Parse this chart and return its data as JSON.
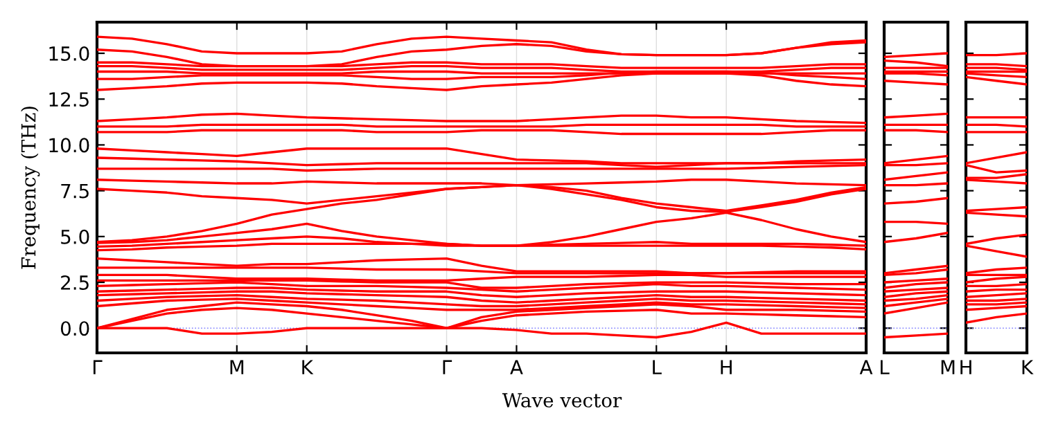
{
  "chart_data": [
    {
      "type": "line",
      "xlabel": "Wave vector",
      "ylabel": "Frequency (THz)",
      "grid": "x",
      "line_style": "solid",
      "categories": [
        "Γ",
        null,
        null,
        null,
        "M",
        null,
        "K",
        null,
        null,
        null,
        "Γ",
        null,
        "A",
        null,
        null,
        null,
        "L",
        null,
        "H",
        null,
        null,
        null,
        "A"
      ],
      "ylim": [
        -1.35,
        16.7
      ],
      "yticks": [
        {
          "value": 0,
          "label": "0.0"
        },
        {
          "value": 2.5,
          "label": "2.5"
        },
        {
          "value": 5,
          "label": "5.0"
        },
        {
          "value": 7.5,
          "label": "7.5"
        },
        {
          "value": 10,
          "label": "10.0"
        },
        {
          "value": 12.5,
          "label": "12.5"
        },
        {
          "value": 15,
          "label": "15.0"
        }
      ],
      "ref_lines": [
        {
          "axis": "y",
          "value": 0,
          "color": "#8080ff",
          "line_style": "dotted"
        }
      ],
      "series": [
        {
          "color": "#ff0000",
          "values": [
            15.9,
            15.8,
            15.5,
            15.1,
            15.0,
            15.0,
            15.0,
            15.1,
            15.5,
            15.8,
            15.9,
            15.8,
            15.7,
            15.6,
            15.2,
            14.95,
            14.9,
            14.9,
            14.9,
            15.0,
            15.3,
            15.6,
            15.7
          ]
        },
        {
          "color": "#ff0000",
          "values": [
            15.2,
            15.1,
            14.8,
            14.4,
            14.3,
            14.3,
            14.3,
            14.4,
            14.8,
            15.1,
            15.2,
            15.4,
            15.5,
            15.4,
            15.1,
            14.95,
            14.9,
            14.9,
            14.9,
            15.0,
            15.3,
            15.5,
            15.6
          ]
        },
        {
          "color": "#ff0000",
          "values": [
            14.5,
            14.5,
            14.4,
            14.3,
            14.3,
            14.3,
            14.3,
            14.3,
            14.4,
            14.5,
            14.5,
            14.4,
            14.4,
            14.4,
            14.3,
            14.2,
            14.2,
            14.2,
            14.2,
            14.2,
            14.3,
            14.4,
            14.4
          ]
        },
        {
          "color": "#ff0000",
          "values": [
            14.3,
            14.3,
            14.2,
            14.1,
            14.1,
            14.1,
            14.1,
            14.1,
            14.2,
            14.3,
            14.3,
            14.2,
            14.2,
            14.2,
            14.1,
            14.0,
            14.0,
            14.0,
            14.0,
            14.0,
            14.1,
            14.2,
            14.2
          ]
        },
        {
          "color": "#ff0000",
          "values": [
            14.0,
            14.0,
            14.0,
            13.9,
            13.9,
            13.9,
            13.9,
            13.9,
            14.0,
            14.0,
            14.0,
            13.9,
            13.9,
            13.9,
            13.9,
            13.9,
            13.9,
            13.9,
            13.9,
            13.9,
            13.9,
            13.9,
            13.9
          ]
        },
        {
          "color": "#ff0000",
          "values": [
            13.6,
            13.6,
            13.7,
            13.8,
            13.8,
            13.8,
            13.8,
            13.8,
            13.7,
            13.6,
            13.6,
            13.7,
            13.7,
            13.7,
            13.8,
            13.95,
            14.0,
            14.0,
            14.0,
            13.95,
            13.8,
            13.7,
            13.6
          ]
        },
        {
          "color": "#ff0000",
          "values": [
            13.0,
            13.1,
            13.2,
            13.35,
            13.4,
            13.4,
            13.4,
            13.35,
            13.2,
            13.1,
            13.0,
            13.2,
            13.3,
            13.4,
            13.6,
            13.8,
            13.9,
            13.9,
            13.9,
            13.8,
            13.5,
            13.3,
            13.2
          ]
        },
        {
          "color": "#ff0000",
          "values": [
            11.3,
            11.4,
            11.5,
            11.65,
            11.7,
            11.6,
            11.5,
            11.45,
            11.4,
            11.35,
            11.3,
            11.3,
            11.3,
            11.4,
            11.5,
            11.6,
            11.6,
            11.5,
            11.5,
            11.4,
            11.3,
            11.25,
            11.2
          ]
        },
        {
          "color": "#ff0000",
          "values": [
            11.0,
            11.0,
            11.0,
            11.1,
            11.1,
            11.1,
            11.1,
            11.1,
            11.0,
            11.0,
            11.0,
            11.0,
            11.0,
            11.0,
            11.1,
            11.1,
            11.1,
            11.1,
            11.1,
            11.1,
            11.0,
            11.0,
            11.0
          ]
        },
        {
          "color": "#ff0000",
          "values": [
            10.7,
            10.7,
            10.7,
            10.8,
            10.8,
            10.8,
            10.8,
            10.8,
            10.7,
            10.7,
            10.7,
            10.8,
            10.8,
            10.8,
            10.7,
            10.6,
            10.6,
            10.6,
            10.6,
            10.6,
            10.7,
            10.8,
            10.8
          ]
        },
        {
          "color": "#ff0000",
          "values": [
            9.8,
            9.7,
            9.6,
            9.5,
            9.4,
            9.6,
            9.8,
            9.8,
            9.8,
            9.8,
            9.8,
            9.5,
            9.2,
            9.15,
            9.1,
            9.0,
            9.0,
            9.0,
            9.0,
            9.0,
            9.1,
            9.15,
            9.2
          ]
        },
        {
          "color": "#ff0000",
          "values": [
            9.3,
            9.25,
            9.2,
            9.15,
            9.1,
            9.0,
            8.9,
            8.95,
            9.0,
            9.0,
            9.0,
            9.0,
            9.0,
            9.0,
            9.0,
            8.9,
            8.8,
            8.9,
            9.0,
            9.0,
            9.0,
            9.0,
            9.0
          ]
        },
        {
          "color": "#ff0000",
          "values": [
            8.7,
            8.7,
            8.7,
            8.7,
            8.7,
            8.7,
            8.6,
            8.65,
            8.7,
            8.7,
            8.7,
            8.7,
            8.7,
            8.7,
            8.7,
            8.7,
            8.7,
            8.7,
            8.7,
            8.75,
            8.8,
            8.85,
            8.9
          ]
        },
        {
          "color": "#ff0000",
          "values": [
            8.1,
            8.05,
            8.0,
            7.95,
            7.9,
            7.9,
            8.0,
            7.95,
            7.9,
            7.9,
            7.9,
            7.9,
            7.8,
            7.85,
            7.9,
            7.95,
            8.0,
            8.1,
            8.1,
            8.0,
            7.9,
            7.85,
            7.8
          ]
        },
        {
          "color": "#ff0000",
          "values": [
            7.6,
            7.5,
            7.4,
            7.2,
            7.1,
            7.0,
            6.8,
            7.0,
            7.2,
            7.4,
            7.6,
            7.7,
            7.8,
            7.7,
            7.5,
            7.1,
            6.8,
            6.6,
            6.4,
            6.7,
            7.0,
            7.4,
            7.7
          ]
        },
        {
          "color": "#ff0000",
          "values": [
            4.7,
            4.8,
            5.0,
            5.3,
            5.7,
            6.2,
            6.5,
            6.8,
            7.0,
            7.3,
            7.6,
            7.7,
            7.8,
            7.6,
            7.3,
            7.0,
            6.6,
            6.4,
            6.35,
            6.6,
            6.9,
            7.3,
            7.6
          ]
        },
        {
          "color": "#ff0000",
          "values": [
            4.65,
            4.7,
            4.8,
            5.0,
            5.2,
            5.4,
            5.7,
            5.3,
            5.0,
            4.8,
            4.6,
            4.5,
            4.5,
            4.7,
            5.0,
            5.4,
            5.8,
            6.0,
            6.3,
            5.9,
            5.4,
            5.0,
            4.7
          ]
        },
        {
          "color": "#ff0000",
          "values": [
            4.45,
            4.5,
            4.6,
            4.7,
            4.8,
            4.9,
            5.0,
            4.9,
            4.7,
            4.6,
            4.5,
            4.5,
            4.5,
            4.55,
            4.6,
            4.65,
            4.7,
            4.6,
            4.6,
            4.6,
            4.6,
            4.55,
            4.5
          ]
        },
        {
          "color": "#ff0000",
          "values": [
            4.25,
            4.3,
            4.4,
            4.45,
            4.5,
            4.6,
            4.6,
            4.6,
            4.6,
            4.6,
            4.6,
            4.5,
            4.5,
            4.5,
            4.5,
            4.5,
            4.5,
            4.5,
            4.5,
            4.5,
            4.45,
            4.4,
            4.3
          ]
        },
        {
          "color": "#ff0000",
          "values": [
            3.8,
            3.7,
            3.6,
            3.5,
            3.4,
            3.5,
            3.5,
            3.6,
            3.7,
            3.75,
            3.8,
            3.4,
            3.1,
            3.1,
            3.1,
            3.1,
            3.1,
            3.0,
            3.0,
            3.05,
            3.1,
            3.1,
            3.1
          ]
        },
        {
          "color": "#ff0000",
          "values": [
            3.3,
            3.3,
            3.3,
            3.3,
            3.3,
            3.3,
            3.3,
            3.25,
            3.2,
            3.2,
            3.2,
            3.1,
            3.0,
            3.0,
            3.0,
            3.0,
            3.0,
            3.0,
            3.0,
            3.0,
            3.0,
            3.0,
            3.0
          ]
        },
        {
          "color": "#ff0000",
          "values": [
            2.9,
            2.9,
            2.9,
            2.8,
            2.7,
            2.7,
            2.7,
            2.65,
            2.6,
            2.6,
            2.6,
            2.7,
            2.8,
            2.8,
            2.8,
            2.85,
            2.9,
            2.9,
            2.8,
            2.8,
            2.8,
            2.8,
            2.8
          ]
        },
        {
          "color": "#ff0000",
          "values": [
            2.6,
            2.6,
            2.6,
            2.6,
            2.6,
            2.6,
            2.6,
            2.55,
            2.5,
            2.5,
            2.5,
            2.2,
            2.2,
            2.3,
            2.4,
            2.45,
            2.5,
            2.5,
            2.5,
            2.45,
            2.4,
            2.4,
            2.4
          ]
        },
        {
          "color": "#ff0000",
          "values": [
            2.3,
            2.35,
            2.4,
            2.45,
            2.5,
            2.4,
            2.3,
            2.3,
            2.3,
            2.25,
            2.2,
            2.1,
            2.0,
            2.1,
            2.2,
            2.3,
            2.4,
            2.3,
            2.3,
            2.25,
            2.2,
            2.15,
            2.1
          ]
        },
        {
          "color": "#ff0000",
          "values": [
            2.0,
            2.05,
            2.1,
            2.15,
            2.2,
            2.2,
            2.1,
            2.05,
            2.0,
            2.0,
            2.0,
            1.8,
            1.7,
            1.8,
            1.9,
            1.95,
            2.0,
            2.0,
            2.0,
            1.95,
            1.9,
            1.85,
            1.8
          ]
        },
        {
          "color": "#ff0000",
          "values": [
            1.8,
            1.85,
            1.9,
            1.95,
            2.0,
            2.0,
            1.9,
            1.85,
            1.8,
            1.75,
            1.7,
            1.5,
            1.4,
            1.5,
            1.6,
            1.7,
            1.8,
            1.7,
            1.7,
            1.65,
            1.6,
            1.55,
            1.5
          ]
        },
        {
          "color": "#ff0000",
          "values": [
            1.5,
            1.6,
            1.7,
            1.75,
            1.8,
            1.7,
            1.6,
            1.55,
            1.5,
            1.4,
            1.3,
            1.2,
            1.2,
            1.3,
            1.4,
            1.5,
            1.6,
            1.5,
            1.5,
            1.45,
            1.4,
            1.35,
            1.3
          ]
        },
        {
          "color": "#ff0000",
          "values": [
            1.2,
            1.35,
            1.5,
            1.55,
            1.6,
            1.5,
            1.4,
            1.3,
            1.2,
            1.1,
            1.0,
            1.0,
            1.0,
            1.1,
            1.2,
            1.3,
            1.4,
            1.3,
            1.3,
            1.25,
            1.2,
            1.15,
            1.1
          ]
        },
        {
          "color": "#ff0000",
          "values": [
            0.0,
            0.5,
            1.0,
            1.2,
            1.4,
            1.3,
            1.2,
            1.0,
            0.7,
            0.4,
            0.0,
            0.6,
            0.9,
            1.0,
            1.1,
            1.2,
            1.3,
            1.2,
            1.0,
            1.0,
            1.0,
            0.95,
            0.9
          ]
        },
        {
          "color": "#ff0000",
          "values": [
            0.0,
            0.4,
            0.8,
            1.0,
            1.1,
            1.0,
            0.8,
            0.6,
            0.4,
            0.2,
            0.0,
            0.4,
            0.7,
            0.8,
            0.9,
            0.95,
            1.0,
            0.8,
            0.8,
            0.75,
            0.7,
            0.65,
            0.6
          ]
        },
        {
          "color": "#ff0000",
          "values": [
            0.0,
            0.0,
            0.0,
            -0.3,
            -0.3,
            -0.2,
            0.0,
            0.0,
            0.0,
            0.0,
            0.0,
            0.0,
            -0.1,
            -0.3,
            -0.3,
            -0.4,
            -0.5,
            -0.2,
            0.3,
            -0.3,
            -0.3,
            -0.3,
            -0.3
          ]
        }
      ]
    },
    {
      "type": "line",
      "tick_labels": "x",
      "line_style": "solid",
      "categories": [
        "L",
        null,
        "M"
      ],
      "ylim": [
        -1.35,
        16.7
      ],
      "yticks": [
        {
          "value": 0,
          "label": null
        },
        {
          "value": 2.5,
          "label": null
        },
        {
          "value": 5,
          "label": null
        },
        {
          "value": 7.5,
          "label": null
        },
        {
          "value": 10,
          "label": null
        },
        {
          "value": 12.5,
          "label": null
        },
        {
          "value": 15,
          "label": null
        }
      ],
      "ref_lines": [
        {
          "axis": "y",
          "value": 0,
          "color": "#8080ff",
          "line_style": "dotted"
        }
      ],
      "series": [
        {
          "color": "#ff0000",
          "values": [
            14.8,
            14.9,
            15.0
          ]
        },
        {
          "color": "#ff0000",
          "values": [
            14.6,
            14.5,
            14.3
          ]
        },
        {
          "color": "#ff0000",
          "values": [
            14.2,
            14.2,
            14.2
          ]
        },
        {
          "color": "#ff0000",
          "values": [
            14.0,
            14.0,
            14.0
          ]
        },
        {
          "color": "#ff0000",
          "values": [
            13.9,
            13.9,
            13.8
          ]
        },
        {
          "color": "#ff0000",
          "values": [
            13.5,
            13.4,
            13.3
          ]
        },
        {
          "color": "#ff0000",
          "values": [
            11.5,
            11.6,
            11.7
          ]
        },
        {
          "color": "#ff0000",
          "values": [
            11.1,
            11.1,
            11.1
          ]
        },
        {
          "color": "#ff0000",
          "values": [
            10.8,
            10.8,
            10.7
          ]
        },
        {
          "color": "#ff0000",
          "values": [
            9.0,
            9.2,
            9.4
          ]
        },
        {
          "color": "#ff0000",
          "values": [
            8.9,
            8.9,
            9.0
          ]
        },
        {
          "color": "#ff0000",
          "values": [
            8.1,
            8.3,
            8.5
          ]
        },
        {
          "color": "#ff0000",
          "values": [
            7.8,
            7.8,
            7.9
          ]
        },
        {
          "color": "#ff0000",
          "values": [
            6.8,
            6.9,
            7.1
          ]
        },
        {
          "color": "#ff0000",
          "values": [
            5.8,
            5.8,
            5.7
          ]
        },
        {
          "color": "#ff0000",
          "values": [
            4.7,
            4.9,
            5.2
          ]
        },
        {
          "color": "#ff0000",
          "values": [
            3.0,
            3.2,
            3.4
          ]
        },
        {
          "color": "#ff0000",
          "values": [
            2.9,
            3.0,
            3.2
          ]
        },
        {
          "color": "#ff0000",
          "values": [
            2.5,
            2.6,
            2.7
          ]
        },
        {
          "color": "#ff0000",
          "values": [
            2.2,
            2.4,
            2.5
          ]
        },
        {
          "color": "#ff0000",
          "values": [
            2.0,
            2.1,
            2.2
          ]
        },
        {
          "color": "#ff0000",
          "values": [
            1.7,
            1.9,
            2.0
          ]
        },
        {
          "color": "#ff0000",
          "values": [
            1.5,
            1.6,
            1.8
          ]
        },
        {
          "color": "#ff0000",
          "values": [
            1.2,
            1.4,
            1.6
          ]
        },
        {
          "color": "#ff0000",
          "values": [
            0.8,
            1.1,
            1.4
          ]
        },
        {
          "color": "#ff0000",
          "values": [
            -0.5,
            -0.4,
            -0.3
          ]
        }
      ]
    },
    {
      "type": "line",
      "tick_labels": "x",
      "line_style": "solid",
      "categories": [
        "H",
        null,
        "K"
      ],
      "ylim": [
        -1.35,
        16.7
      ],
      "yticks": [
        {
          "value": 0,
          "label": null
        },
        {
          "value": 2.5,
          "label": null
        },
        {
          "value": 5,
          "label": null
        },
        {
          "value": 7.5,
          "label": null
        },
        {
          "value": 10,
          "label": null
        },
        {
          "value": 12.5,
          "label": null
        },
        {
          "value": 15,
          "label": null
        }
      ],
      "ref_lines": [
        {
          "axis": "y",
          "value": 0,
          "color": "#8080ff",
          "line_style": "dotted"
        }
      ],
      "series": [
        {
          "color": "#ff0000",
          "values": [
            14.9,
            14.9,
            15.0
          ]
        },
        {
          "color": "#ff0000",
          "values": [
            14.4,
            14.4,
            14.3
          ]
        },
        {
          "color": "#ff0000",
          "values": [
            14.2,
            14.2,
            14.1
          ]
        },
        {
          "color": "#ff0000",
          "values": [
            14.0,
            14.0,
            14.0
          ]
        },
        {
          "color": "#ff0000",
          "values": [
            13.9,
            13.8,
            13.7
          ]
        },
        {
          "color": "#ff0000",
          "values": [
            13.7,
            13.5,
            13.3
          ]
        },
        {
          "color": "#ff0000",
          "values": [
            11.5,
            11.5,
            11.5
          ]
        },
        {
          "color": "#ff0000",
          "values": [
            11.1,
            11.1,
            11.0
          ]
        },
        {
          "color": "#ff0000",
          "values": [
            10.7,
            10.7,
            10.7
          ]
        },
        {
          "color": "#ff0000",
          "values": [
            9.0,
            9.3,
            9.6
          ]
        },
        {
          "color": "#ff0000",
          "values": [
            8.9,
            8.5,
            8.6
          ]
        },
        {
          "color": "#ff0000",
          "values": [
            8.2,
            8.2,
            8.4
          ]
        },
        {
          "color": "#ff0000",
          "values": [
            8.1,
            8.0,
            7.9
          ]
        },
        {
          "color": "#ff0000",
          "values": [
            6.4,
            6.5,
            6.6
          ]
        },
        {
          "color": "#ff0000",
          "values": [
            6.3,
            6.2,
            6.1
          ]
        },
        {
          "color": "#ff0000",
          "values": [
            4.6,
            4.9,
            5.1
          ]
        },
        {
          "color": "#ff0000",
          "values": [
            4.5,
            4.2,
            3.9
          ]
        },
        {
          "color": "#ff0000",
          "values": [
            3.0,
            3.2,
            3.3
          ]
        },
        {
          "color": "#ff0000",
          "values": [
            2.9,
            2.9,
            2.9
          ]
        },
        {
          "color": "#ff0000",
          "values": [
            2.5,
            2.7,
            2.8
          ]
        },
        {
          "color": "#ff0000",
          "values": [
            2.3,
            2.3,
            2.4
          ]
        },
        {
          "color": "#ff0000",
          "values": [
            2.0,
            2.1,
            2.1
          ]
        },
        {
          "color": "#ff0000",
          "values": [
            1.7,
            1.8,
            1.9
          ]
        },
        {
          "color": "#ff0000",
          "values": [
            1.5,
            1.5,
            1.6
          ]
        },
        {
          "color": "#ff0000",
          "values": [
            1.3,
            1.3,
            1.4
          ]
        },
        {
          "color": "#ff0000",
          "values": [
            1.0,
            1.1,
            1.2
          ]
        },
        {
          "color": "#ff0000",
          "values": [
            0.3,
            0.6,
            0.8
          ]
        }
      ]
    }
  ]
}
